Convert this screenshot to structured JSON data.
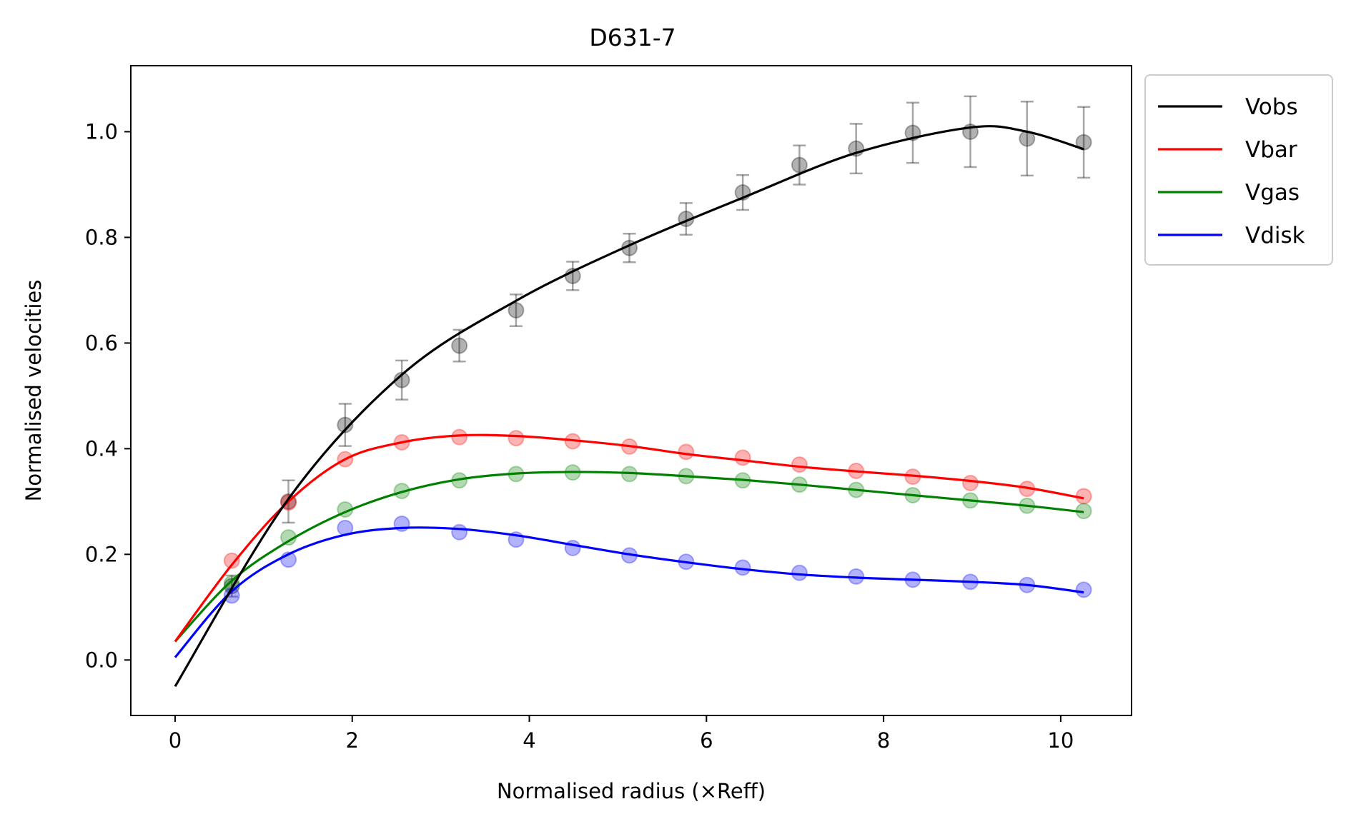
{
  "chart_data": {
    "type": "line",
    "title": "D631-7",
    "xlabel": "Normalised radius (×Reff)",
    "ylabel": "Normalised velocities",
    "xlim": [
      -0.5,
      10.8
    ],
    "ylim": [
      -0.105,
      1.125
    ],
    "xticks": [
      0,
      2,
      4,
      6,
      8,
      10
    ],
    "xtick_labels": [
      "0",
      "2",
      "4",
      "6",
      "8",
      "10"
    ],
    "yticks": [
      0.0,
      0.2,
      0.4,
      0.6,
      0.8,
      1.0
    ],
    "ytick_labels": [
      "0.0",
      "0.2",
      "0.4",
      "0.6",
      "0.8",
      "1.0"
    ],
    "grid": false,
    "legend_position": "outside-top-right",
    "points_x": [
      0.64,
      1.28,
      1.92,
      2.56,
      3.21,
      3.85,
      4.49,
      5.13,
      5.77,
      6.41,
      7.05,
      7.69,
      8.33,
      8.98,
      9.62,
      10.26
    ],
    "series": [
      {
        "name": "Vobs",
        "color": "#000000",
        "points_y": [
          0.14,
          0.3,
          0.445,
          0.53,
          0.595,
          0.662,
          0.727,
          0.78,
          0.835,
          0.885,
          0.937,
          0.968,
          0.998,
          1.0,
          0.987,
          0.98
        ],
        "errors": [
          0.02,
          0.04,
          0.04,
          0.037,
          0.03,
          0.03,
          0.027,
          0.027,
          0.03,
          0.033,
          0.037,
          0.047,
          0.057,
          0.067,
          0.07,
          0.067
        ],
        "curve_x": [
          0,
          1.28,
          2.56,
          3.85,
          5.13,
          6.41,
          7.69,
          8.98,
          9.62,
          10.26
        ],
        "curve_y": [
          -0.05,
          0.305,
          0.54,
          0.68,
          0.785,
          0.875,
          0.96,
          1.008,
          1.0,
          0.967
        ]
      },
      {
        "name": "Vbar",
        "color": "#ff0000",
        "points_y": [
          0.188,
          0.298,
          0.38,
          0.412,
          0.422,
          0.42,
          0.414,
          0.404,
          0.394,
          0.383,
          0.37,
          0.358,
          0.347,
          0.335,
          0.324,
          0.31
        ],
        "curve_x": [
          0,
          0.64,
          1.28,
          1.92,
          2.56,
          3.21,
          3.85,
          4.49,
          5.13,
          5.77,
          6.41,
          7.05,
          7.69,
          8.33,
          8.98,
          9.62,
          10.26
        ],
        "curve_y": [
          0.035,
          0.18,
          0.3,
          0.38,
          0.412,
          0.425,
          0.424,
          0.416,
          0.405,
          0.39,
          0.378,
          0.366,
          0.357,
          0.349,
          0.339,
          0.326,
          0.306
        ]
      },
      {
        "name": "Vgas",
        "color": "#008000",
        "points_y": [
          0.145,
          0.232,
          0.285,
          0.32,
          0.34,
          0.352,
          0.355,
          0.352,
          0.348,
          0.34,
          0.332,
          0.322,
          0.312,
          0.302,
          0.292,
          0.282
        ],
        "curve_x": [
          0,
          0.64,
          1.28,
          1.92,
          2.56,
          3.21,
          3.85,
          4.49,
          5.13,
          5.77,
          6.41,
          7.05,
          7.69,
          8.33,
          8.98,
          9.62,
          10.26
        ],
        "curve_y": [
          0.035,
          0.15,
          0.225,
          0.28,
          0.318,
          0.342,
          0.353,
          0.356,
          0.354,
          0.348,
          0.341,
          0.332,
          0.322,
          0.312,
          0.302,
          0.292,
          0.28
        ]
      },
      {
        "name": "Vdisk",
        "color": "#0000ff",
        "points_y": [
          0.122,
          0.19,
          0.25,
          0.258,
          0.242,
          0.228,
          0.212,
          0.198,
          0.186,
          0.175,
          0.165,
          0.158,
          0.152,
          0.148,
          0.142,
          0.133
        ],
        "curve_x": [
          0,
          0.64,
          1.28,
          1.92,
          2.56,
          3.21,
          3.85,
          4.49,
          5.13,
          5.77,
          6.41,
          7.05,
          7.69,
          8.33,
          8.98,
          9.62,
          10.26
        ],
        "curve_y": [
          0.005,
          0.13,
          0.2,
          0.237,
          0.25,
          0.248,
          0.236,
          0.218,
          0.2,
          0.185,
          0.172,
          0.162,
          0.156,
          0.152,
          0.148,
          0.142,
          0.128
        ]
      }
    ]
  }
}
